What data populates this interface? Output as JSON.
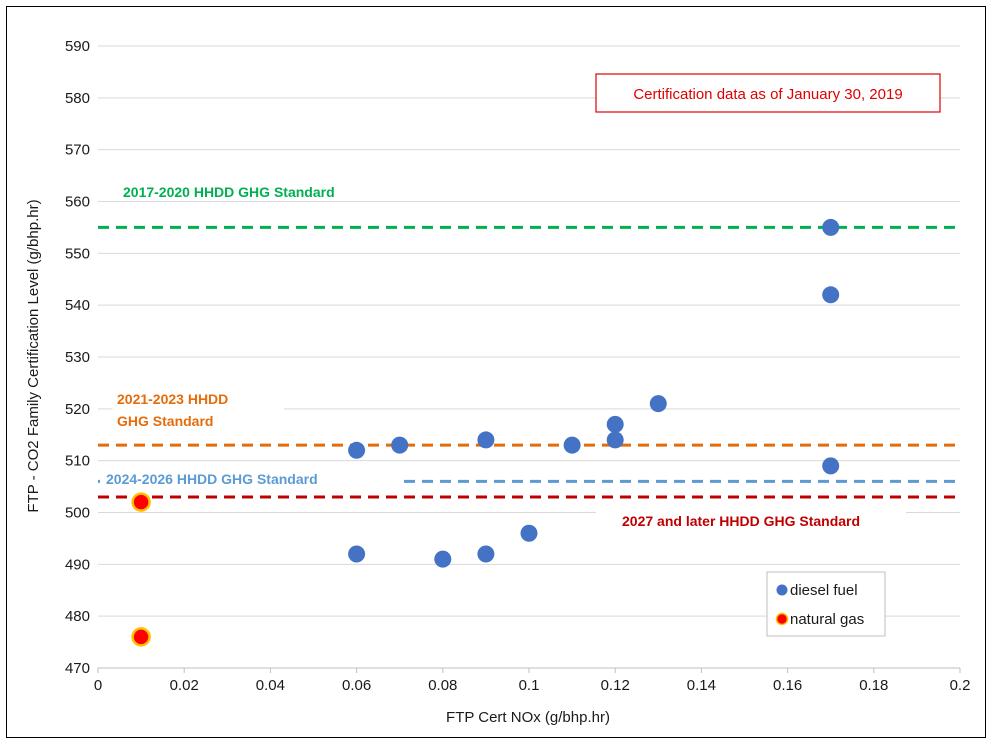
{
  "chart_data": {
    "type": "scatter",
    "xlabel": "FTP Cert NOx (g/bhp.hr)",
    "ylabel": "FTP - CO2 Family Certification Level (g/bhp.hr)",
    "xlim": [
      0,
      0.2
    ],
    "ylim": [
      470,
      590
    ],
    "x_ticks": [
      "0",
      "0.02",
      "0.04",
      "0.06",
      "0.08",
      "0.1",
      "0.12",
      "0.14",
      "0.16",
      "0.18",
      "0.2"
    ],
    "y_ticks": [
      "470",
      "480",
      "490",
      "500",
      "510",
      "520",
      "530",
      "540",
      "550",
      "560",
      "570",
      "580",
      "590"
    ],
    "grid": "horizontal",
    "legend_position": "bottom-right",
    "series": [
      {
        "name": "diesel fuel",
        "color": "#4472c4",
        "points": [
          {
            "x": 0.06,
            "y": 512
          },
          {
            "x": 0.06,
            "y": 492
          },
          {
            "x": 0.07,
            "y": 513
          },
          {
            "x": 0.08,
            "y": 491
          },
          {
            "x": 0.09,
            "y": 514
          },
          {
            "x": 0.09,
            "y": 492
          },
          {
            "x": 0.1,
            "y": 496
          },
          {
            "x": 0.11,
            "y": 513
          },
          {
            "x": 0.12,
            "y": 517
          },
          {
            "x": 0.12,
            "y": 514
          },
          {
            "x": 0.13,
            "y": 521
          },
          {
            "x": 0.17,
            "y": 555
          },
          {
            "x": 0.17,
            "y": 542
          },
          {
            "x": 0.17,
            "y": 509
          }
        ]
      },
      {
        "name": "natural gas",
        "color": "#ff0000",
        "edge_color": "#ffc000",
        "points": [
          {
            "x": 0.01,
            "y": 502
          },
          {
            "x": 0.01,
            "y": 476
          }
        ]
      }
    ],
    "reference_lines": [
      {
        "label": "2017-2020 HHDD GHG Standard",
        "y": 555,
        "color": "#00b050"
      },
      {
        "label": "2021-2023 HHDD GHG Standard",
        "y": 513,
        "color": "#e46c0a"
      },
      {
        "label": "2024-2026 HHDD GHG Standard",
        "y": 506,
        "color": "#5b9bd5"
      },
      {
        "label": "2027 and later HHDD GHG Standard",
        "y": 503,
        "color": "#c00000"
      }
    ],
    "annotation": "Certification data as of January 30, 2019"
  }
}
